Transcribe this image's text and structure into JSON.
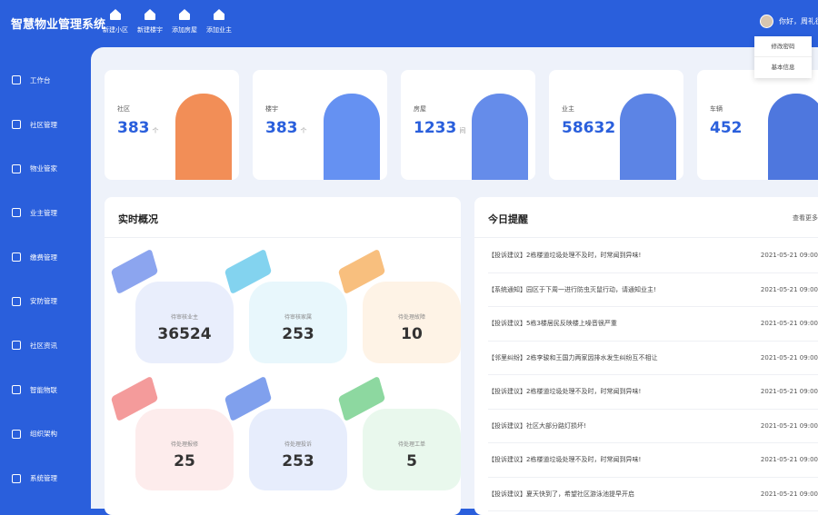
{
  "header": {
    "title": "智慧物业管理系统",
    "quick_actions": [
      {
        "label": "新建小区",
        "icon": "home-icon"
      },
      {
        "label": "新建楼宇",
        "icon": "building-icon"
      },
      {
        "label": "添加房屋",
        "icon": "house-icon"
      },
      {
        "label": "添加业主",
        "icon": "user-add-icon"
      }
    ],
    "greeting": "你好，周礼德",
    "menu": [
      "修改密码",
      "基本信息"
    ]
  },
  "sidebar": {
    "items": [
      {
        "label": "工作台",
        "icon": "home-icon",
        "active": true
      },
      {
        "label": "社区管理"
      },
      {
        "label": "物业管家"
      },
      {
        "label": "业主管理"
      },
      {
        "label": "缴费管理"
      },
      {
        "label": "安防管理"
      },
      {
        "label": "社区资讯"
      },
      {
        "label": "智能物联"
      },
      {
        "label": "组织架构"
      },
      {
        "label": "系统管理"
      }
    ]
  },
  "cards": [
    {
      "label": "社区",
      "value": "383",
      "unit": "个"
    },
    {
      "label": "楼宇",
      "value": "383",
      "unit": "个"
    },
    {
      "label": "房屋",
      "value": "1233",
      "unit": "间"
    },
    {
      "label": "业主",
      "value": "58632",
      "unit": ""
    },
    {
      "label": "车辆",
      "value": "452",
      "unit": ""
    }
  ],
  "overview": {
    "title": "实时概况",
    "stats": [
      {
        "label": "待审核业主",
        "value": "36524",
        "color": "#5b7fe8"
      },
      {
        "label": "待审核家属",
        "value": "253",
        "color": "#4fc0e8"
      },
      {
        "label": "待处理故障",
        "value": "10",
        "color": "#f5a447"
      },
      {
        "label": "待处理报修",
        "value": "25",
        "color": "#f07070"
      },
      {
        "label": "待处理投诉",
        "value": "253",
        "color": "#4a78e6"
      },
      {
        "label": "待处理工单",
        "value": "5",
        "color": "#5cc878"
      }
    ]
  },
  "reminders": {
    "title": "今日提醒",
    "more": "查看更多",
    "items": [
      {
        "text": "【投诉建议】2栋楼道垃圾处理不及时，时常闻到异味!",
        "time": "2021-05-21 09:00"
      },
      {
        "text": "【系统通知】园区于下周一进行防虫灭鼠行动，请通知业主!",
        "time": "2021-05-21 09:00"
      },
      {
        "text": "【投诉建议】5栋3楼居民反映楼上噪音很严重",
        "time": "2021-05-21 09:00"
      },
      {
        "text": "【邻里纠纷】2栋李骏和王国力两家因排水发生纠纷互不相让",
        "time": "2021-05-21 09:00"
      },
      {
        "text": "【投诉建议】2栋楼道垃圾处理不及时，时常闻到异味!",
        "time": "2021-05-21 09:00"
      },
      {
        "text": "【投诉建议】社区大部分路灯损坏!",
        "time": "2021-05-21 09:00"
      },
      {
        "text": "【投诉建议】2栋楼道垃圾处理不及时，时常闻到异味!",
        "time": "2021-05-21 09:00"
      },
      {
        "text": "【投诉建议】夏天快到了，希望社区游泳池提早开启",
        "time": "2021-05-21 09:00"
      }
    ]
  }
}
